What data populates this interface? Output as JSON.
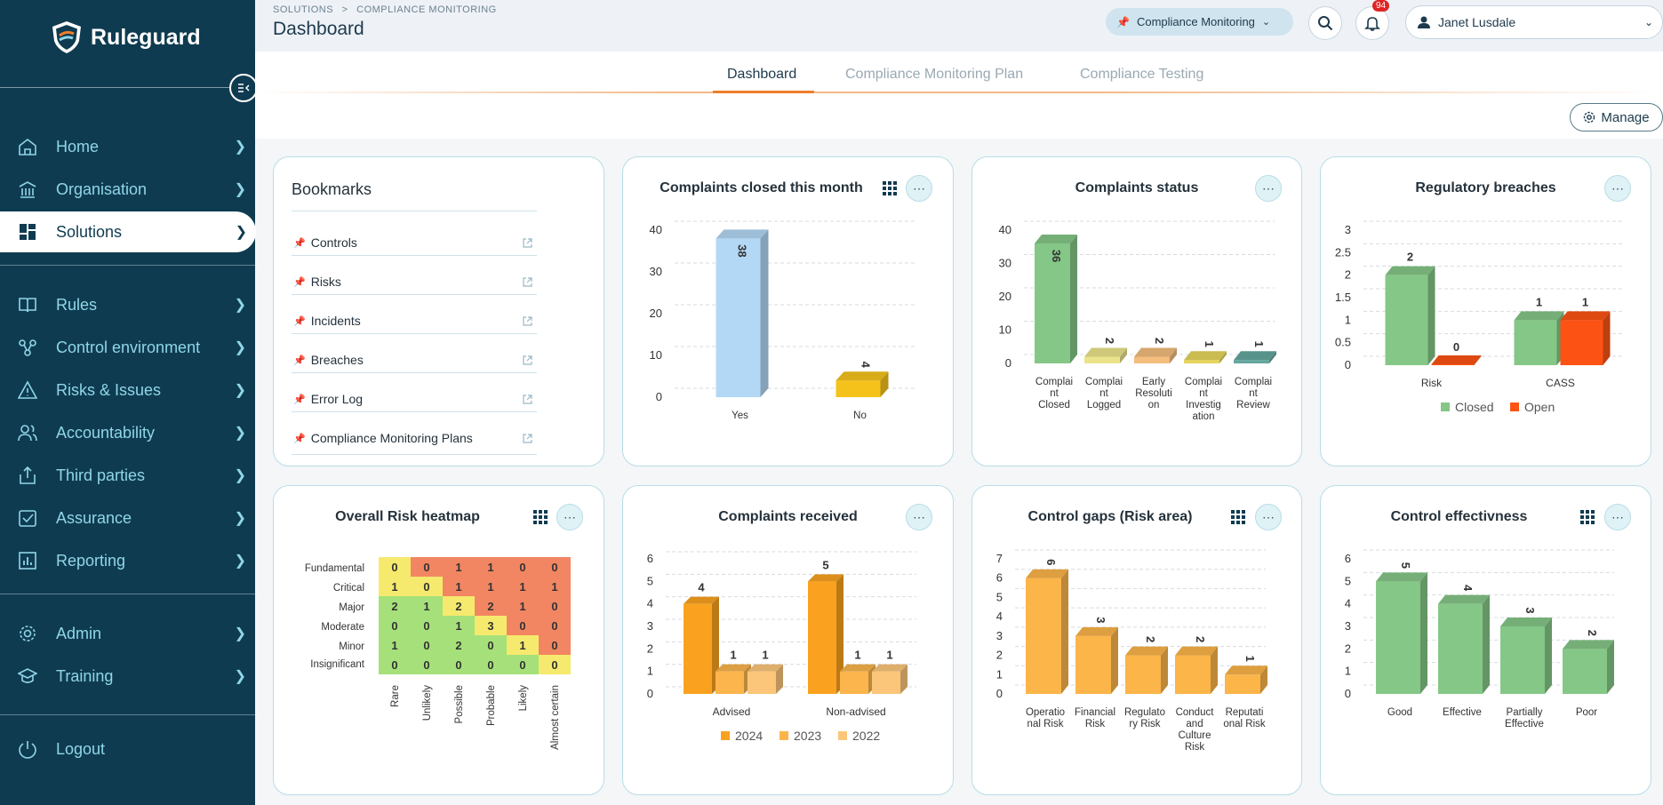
{
  "app": {
    "name": "Ruleguard"
  },
  "nav": {
    "items": [
      {
        "label": "Home"
      },
      {
        "label": "Organisation"
      },
      {
        "label": "Solutions"
      },
      {
        "label": "Rules"
      },
      {
        "label": "Control environment"
      },
      {
        "label": "Risks & Issues"
      },
      {
        "label": "Accountability"
      },
      {
        "label": "Third parties"
      },
      {
        "label": "Assurance"
      },
      {
        "label": "Reporting"
      },
      {
        "label": "Admin"
      },
      {
        "label": "Training"
      },
      {
        "label": "Logout"
      }
    ],
    "active": "Solutions"
  },
  "header": {
    "breadcrumb_root": "SOLUTIONS",
    "breadcrumb_sep": ">",
    "breadcrumb_current": "COMPLIANCE MONITORING",
    "title": "Dashboard",
    "module_selector": "Compliance Monitoring",
    "notifications_count": "94",
    "user_name": "Janet Lusdale"
  },
  "tabs": [
    {
      "label": "Dashboard",
      "active": true
    },
    {
      "label": "Compliance Monitoring Plan",
      "active": false
    },
    {
      "label": "Compliance Testing",
      "active": false
    }
  ],
  "toolbar": {
    "manage_label": "Manage"
  },
  "bookmarks": {
    "title": "Bookmarks",
    "items": [
      "Controls",
      "Risks",
      "Incidents",
      "Breaches",
      "Error Log",
      "Compliance Monitoring Plans"
    ]
  },
  "colors": {
    "sidebar": "#0f3b50",
    "accent": "#f07e2b",
    "nav_text": "#8fd6e8"
  },
  "chart_data": [
    {
      "id": "complaints_closed",
      "title": "Complaints closed this month",
      "type": "bar",
      "categories": [
        "Yes",
        "No"
      ],
      "values": [
        38,
        4
      ],
      "colors": [
        "#b3d8f6",
        "#f5c21b"
      ],
      "ylim": [
        0,
        40
      ],
      "yticks": [
        "0",
        "10",
        "20",
        "30",
        "40"
      ]
    },
    {
      "id": "complaints_status",
      "title": "Complaints status",
      "type": "bar",
      "categories": [
        "Complaint Closed",
        "Complaint Logged",
        "Early Resolution",
        "Complaint Investigation",
        "Complaint Review"
      ],
      "category_lines": [
        [
          "Complai",
          "nt",
          "Closed"
        ],
        [
          "Complai",
          "nt",
          "Logged"
        ],
        [
          "Early",
          "Resoluti",
          "on"
        ],
        [
          "Complai",
          "nt",
          "Investig",
          "ation"
        ],
        [
          "Complai",
          "nt",
          "Review"
        ]
      ],
      "values": [
        36,
        2,
        2,
        1,
        1
      ],
      "colors": [
        "#85c787",
        "#ebe38c",
        "#f3bd7e",
        "#e5d65b",
        "#63a79e"
      ],
      "ylim": [
        0,
        40
      ],
      "yticks": [
        "0",
        "10",
        "20",
        "30",
        "40"
      ]
    },
    {
      "id": "regulatory_breaches",
      "title": "Regulatory breaches",
      "type": "bar",
      "categories": [
        "Risk",
        "CASS"
      ],
      "series": [
        {
          "name": "Closed",
          "values": [
            2,
            1
          ],
          "color": "#85c787"
        },
        {
          "name": "Open",
          "values": [
            0,
            1
          ],
          "color": "#fc5314"
        }
      ],
      "ylim": [
        0,
        3
      ],
      "yticks": [
        "0",
        "0.5",
        "1",
        "1.5",
        "2",
        "2.5",
        "3"
      ],
      "legend": "bottom"
    },
    {
      "id": "risk_heatmap",
      "title": "Overall Risk heatmap",
      "type": "heatmap",
      "rows": [
        "Fundamental",
        "Critical",
        "Major",
        "Moderate",
        "Minor",
        "Insignificant"
      ],
      "cols": [
        "Rare",
        "Unlikely",
        "Possible",
        "Probable",
        "Likely",
        "Almost certain"
      ],
      "values": [
        [
          0,
          0,
          1,
          1,
          0,
          0
        ],
        [
          1,
          0,
          1,
          1,
          1,
          1
        ],
        [
          2,
          1,
          2,
          2,
          1,
          0
        ],
        [
          0,
          0,
          1,
          3,
          0,
          0
        ],
        [
          1,
          0,
          2,
          0,
          1,
          0
        ],
        [
          0,
          0,
          0,
          0,
          0,
          0
        ]
      ],
      "cell_colors": [
        [
          "#f6ea6e",
          "#f28662",
          "#f28662",
          "#f28662",
          "#f28662",
          "#f28662"
        ],
        [
          "#f6ea6e",
          "#f6ea6e",
          "#f28662",
          "#f28662",
          "#f28662",
          "#f28662"
        ],
        [
          "#a6e07a",
          "#a6e07a",
          "#f6ea6e",
          "#f28662",
          "#f28662",
          "#f28662"
        ],
        [
          "#a6e07a",
          "#a6e07a",
          "#a6e07a",
          "#f6ea6e",
          "#f28662",
          "#f28662"
        ],
        [
          "#a6e07a",
          "#a6e07a",
          "#a6e07a",
          "#a6e07a",
          "#f6ea6e",
          "#f28662"
        ],
        [
          "#a6e07a",
          "#a6e07a",
          "#a6e07a",
          "#a6e07a",
          "#a6e07a",
          "#f6ea6e"
        ]
      ]
    },
    {
      "id": "complaints_received",
      "title": "Complaints received",
      "type": "bar",
      "categories": [
        "Advised",
        "Non-advised"
      ],
      "series": [
        {
          "name": "2024",
          "values": [
            4,
            5
          ],
          "color": "#faa21f"
        },
        {
          "name": "2023",
          "values": [
            1,
            1
          ],
          "color": "#fbb54c"
        },
        {
          "name": "2022",
          "values": [
            1,
            1
          ],
          "color": "#fcc67a"
        }
      ],
      "ylim": [
        0,
        6
      ],
      "yticks": [
        "0",
        "1",
        "2",
        "3",
        "4",
        "5",
        "6"
      ],
      "legend": "bottom"
    },
    {
      "id": "control_gaps",
      "title": "Control gaps (Risk area)",
      "type": "bar",
      "categories": [
        "Operational Risk",
        "Financial Risk",
        "Regulatory Risk",
        "Conduct and Culture Risk",
        "Reputational Risk"
      ],
      "category_lines": [
        [
          "Operatio",
          "nal Risk"
        ],
        [
          "Financial",
          "Risk"
        ],
        [
          "Regulato",
          "ry Risk"
        ],
        [
          "Conduct",
          "and",
          "Culture",
          "Risk"
        ],
        [
          "Reputati",
          "onal Risk"
        ]
      ],
      "values": [
        6,
        3,
        2,
        2,
        1
      ],
      "colors": [
        "#fcb549",
        "#fcb549",
        "#fcb549",
        "#fcb549",
        "#fcb549"
      ],
      "ylim": [
        0,
        7
      ],
      "yticks": [
        "0",
        "1",
        "2",
        "3",
        "4",
        "5",
        "6",
        "7"
      ]
    },
    {
      "id": "control_effectiveness",
      "title": "Control effectivness",
      "type": "bar",
      "categories": [
        "Good",
        "Effective",
        "Partially Effective",
        "Poor"
      ],
      "category_lines": [
        [
          "Good"
        ],
        [
          "Effective"
        ],
        [
          "Partially",
          "Effective"
        ],
        [
          "Poor"
        ]
      ],
      "values": [
        5,
        4,
        3,
        2
      ],
      "colors": [
        "#85c787",
        "#85c787",
        "#85c787",
        "#85c787"
      ],
      "ylim": [
        0,
        6
      ],
      "yticks": [
        "0",
        "1",
        "2",
        "3",
        "4",
        "5",
        "6"
      ]
    }
  ]
}
